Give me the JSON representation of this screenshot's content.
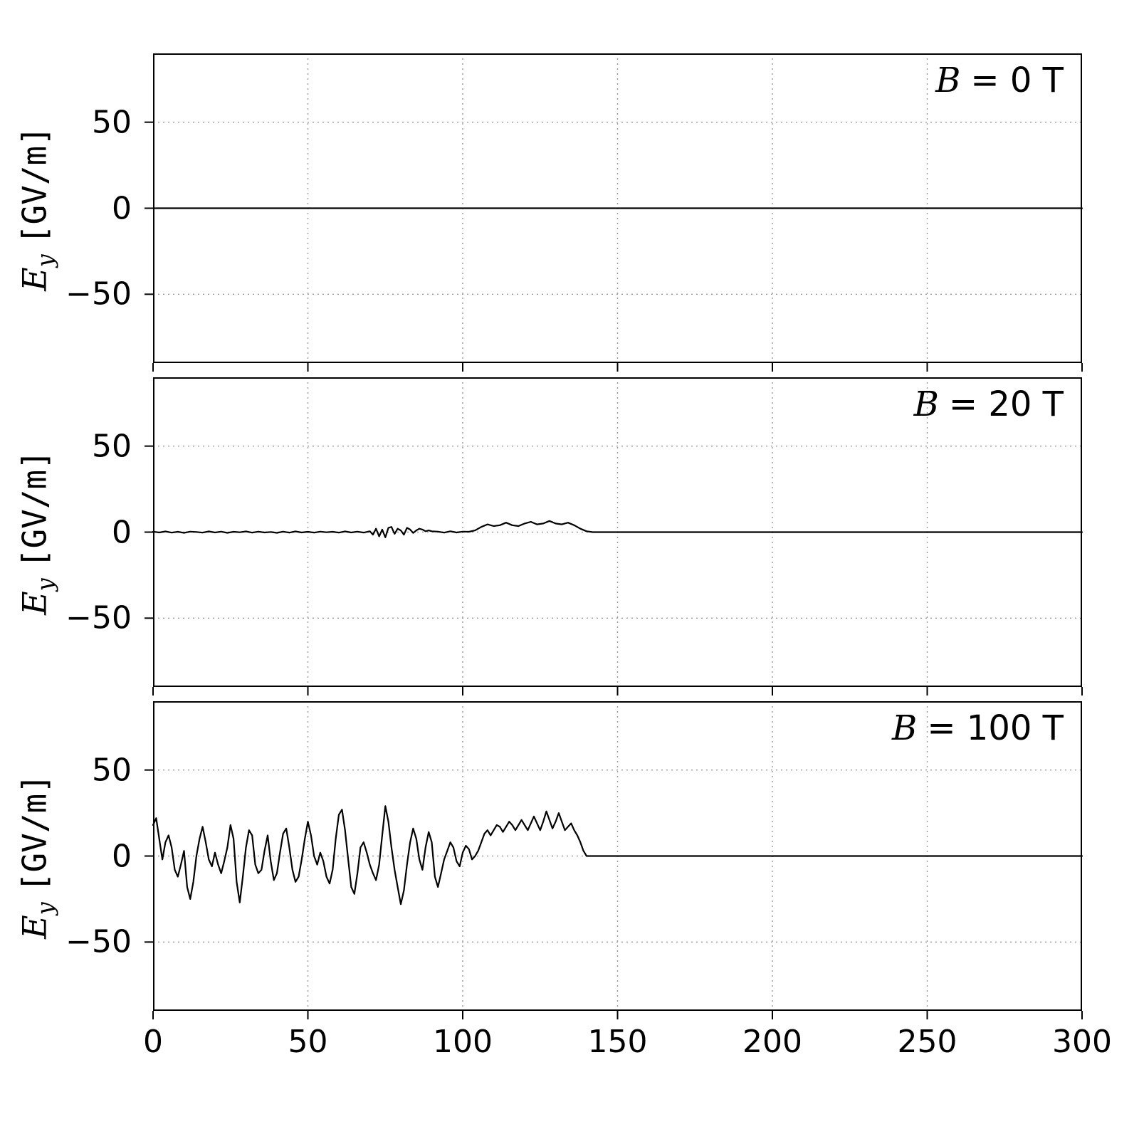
{
  "figure": {
    "background": "#ffffff",
    "line_color": "#000000",
    "grid_color": "#9a9a9a"
  },
  "axis": {
    "xlim": [
      0,
      300
    ],
    "ylim": [
      -90,
      90
    ],
    "x_ticks": [
      0,
      50,
      100,
      150,
      200,
      250,
      300
    ],
    "y_ticks": [
      -50,
      0,
      50
    ],
    "ylabel": {
      "var": "E",
      "sub": "y",
      "unit": "[GV/m]"
    }
  },
  "chart_data": {
    "type": "line",
    "title": "",
    "xlabel": "",
    "ylabel": "Ey [GV/m]",
    "grid": "dotted",
    "panels": [
      {
        "label_var": "B",
        "label_eq": "= 0 T",
        "series": {
          "x": [
            0,
            300
          ],
          "y": [
            0,
            0
          ]
        }
      },
      {
        "label_var": "B",
        "label_eq": "= 20 T",
        "series": {
          "x": [
            0,
            2,
            4,
            6,
            8,
            10,
            12,
            14,
            16,
            18,
            20,
            22,
            24,
            26,
            28,
            30,
            32,
            34,
            36,
            38,
            40,
            42,
            44,
            46,
            48,
            50,
            52,
            54,
            56,
            58,
            60,
            62,
            64,
            66,
            68,
            70,
            71,
            72,
            73,
            74,
            75,
            76,
            77,
            78,
            79,
            80,
            81,
            82,
            83,
            84,
            85,
            86,
            87,
            88,
            89,
            90,
            92,
            94,
            96,
            98,
            100,
            102,
            104,
            106,
            108,
            110,
            112,
            114,
            116,
            118,
            120,
            122,
            124,
            126,
            128,
            130,
            132,
            134,
            136,
            138,
            140,
            142,
            300
          ],
          "y": [
            0.3,
            -0.2,
            0.4,
            -0.3,
            0.2,
            -0.4,
            0.3,
            0.1,
            -0.3,
            0.4,
            -0.2,
            0.3,
            -0.4,
            0.2,
            -0.1,
            0.4,
            -0.3,
            0.3,
            -0.2,
            0.1,
            -0.4,
            0.3,
            -0.3,
            0.4,
            -0.2,
            0.2,
            -0.3,
            0.3,
            -0.1,
            0.2,
            -0.3,
            0.4,
            -0.2,
            0.3,
            -0.3,
            0.5,
            -1.5,
            2,
            -2.5,
            1.5,
            -3,
            2.5,
            3,
            -1,
            2,
            1,
            -1.5,
            2.5,
            1.5,
            -0.5,
            1,
            2,
            1.5,
            0.5,
            1,
            0.5,
            0.3,
            -0.3,
            0.5,
            -0.2,
            0.3,
            0.2,
            1,
            3,
            4.5,
            3.5,
            4,
            5.5,
            4,
            3.5,
            5,
            6,
            4.5,
            5,
            6.5,
            5,
            4.5,
            5.5,
            4,
            2,
            0.5,
            0,
            0
          ]
        }
      },
      {
        "label_var": "B",
        "label_eq": "= 100 T",
        "series": {
          "x": [
            0,
            1,
            2,
            3,
            4,
            5,
            6,
            7,
            8,
            9,
            10,
            11,
            12,
            13,
            14,
            15,
            16,
            17,
            18,
            19,
            20,
            21,
            22,
            23,
            24,
            25,
            26,
            27,
            28,
            29,
            30,
            31,
            32,
            33,
            34,
            35,
            36,
            37,
            38,
            39,
            40,
            41,
            42,
            43,
            44,
            45,
            46,
            47,
            48,
            49,
            50,
            51,
            52,
            53,
            54,
            55,
            56,
            57,
            58,
            59,
            60,
            61,
            62,
            63,
            64,
            65,
            66,
            67,
            68,
            69,
            70,
            71,
            72,
            73,
            74,
            75,
            76,
            77,
            78,
            79,
            80,
            81,
            82,
            83,
            84,
            85,
            86,
            87,
            88,
            89,
            90,
            91,
            92,
            93,
            94,
            95,
            96,
            97,
            98,
            99,
            100,
            101,
            102,
            103,
            104,
            105,
            106,
            107,
            108,
            109,
            110,
            111,
            112,
            113,
            114,
            115,
            116,
            117,
            118,
            119,
            120,
            121,
            122,
            123,
            124,
            125,
            126,
            127,
            128,
            129,
            130,
            131,
            132,
            133,
            134,
            135,
            136,
            137,
            138,
            139,
            140,
            142,
            300
          ],
          "y": [
            18,
            22,
            10,
            -2,
            8,
            12,
            5,
            -8,
            -12,
            -5,
            3,
            -18,
            -25,
            -15,
            0,
            10,
            17,
            8,
            -2,
            -6,
            2,
            -5,
            -10,
            -3,
            5,
            18,
            10,
            -15,
            -27,
            -12,
            5,
            15,
            12,
            -5,
            -10,
            -8,
            3,
            12,
            -3,
            -14,
            -10,
            2,
            13,
            16,
            5,
            -8,
            -15,
            -12,
            -2,
            10,
            20,
            12,
            0,
            -5,
            2,
            -3,
            -12,
            -16,
            -8,
            10,
            24,
            27,
            15,
            -2,
            -18,
            -22,
            -10,
            5,
            8,
            2,
            -5,
            -10,
            -14,
            -5,
            12,
            29,
            20,
            5,
            -8,
            -18,
            -28,
            -20,
            -5,
            8,
            16,
            10,
            -2,
            -8,
            5,
            14,
            8,
            -12,
            -18,
            -10,
            -2,
            3,
            8,
            5,
            -3,
            -6,
            2,
            6,
            4,
            -2,
            0,
            3,
            8,
            13,
            15,
            12,
            15,
            18,
            17,
            14,
            17,
            20,
            18,
            15,
            18,
            21,
            18,
            15,
            19,
            23,
            19,
            15,
            20,
            26,
            21,
            16,
            20,
            25,
            20,
            15,
            17,
            19,
            15,
            12,
            8,
            3,
            0,
            0,
            0
          ]
        }
      }
    ]
  }
}
